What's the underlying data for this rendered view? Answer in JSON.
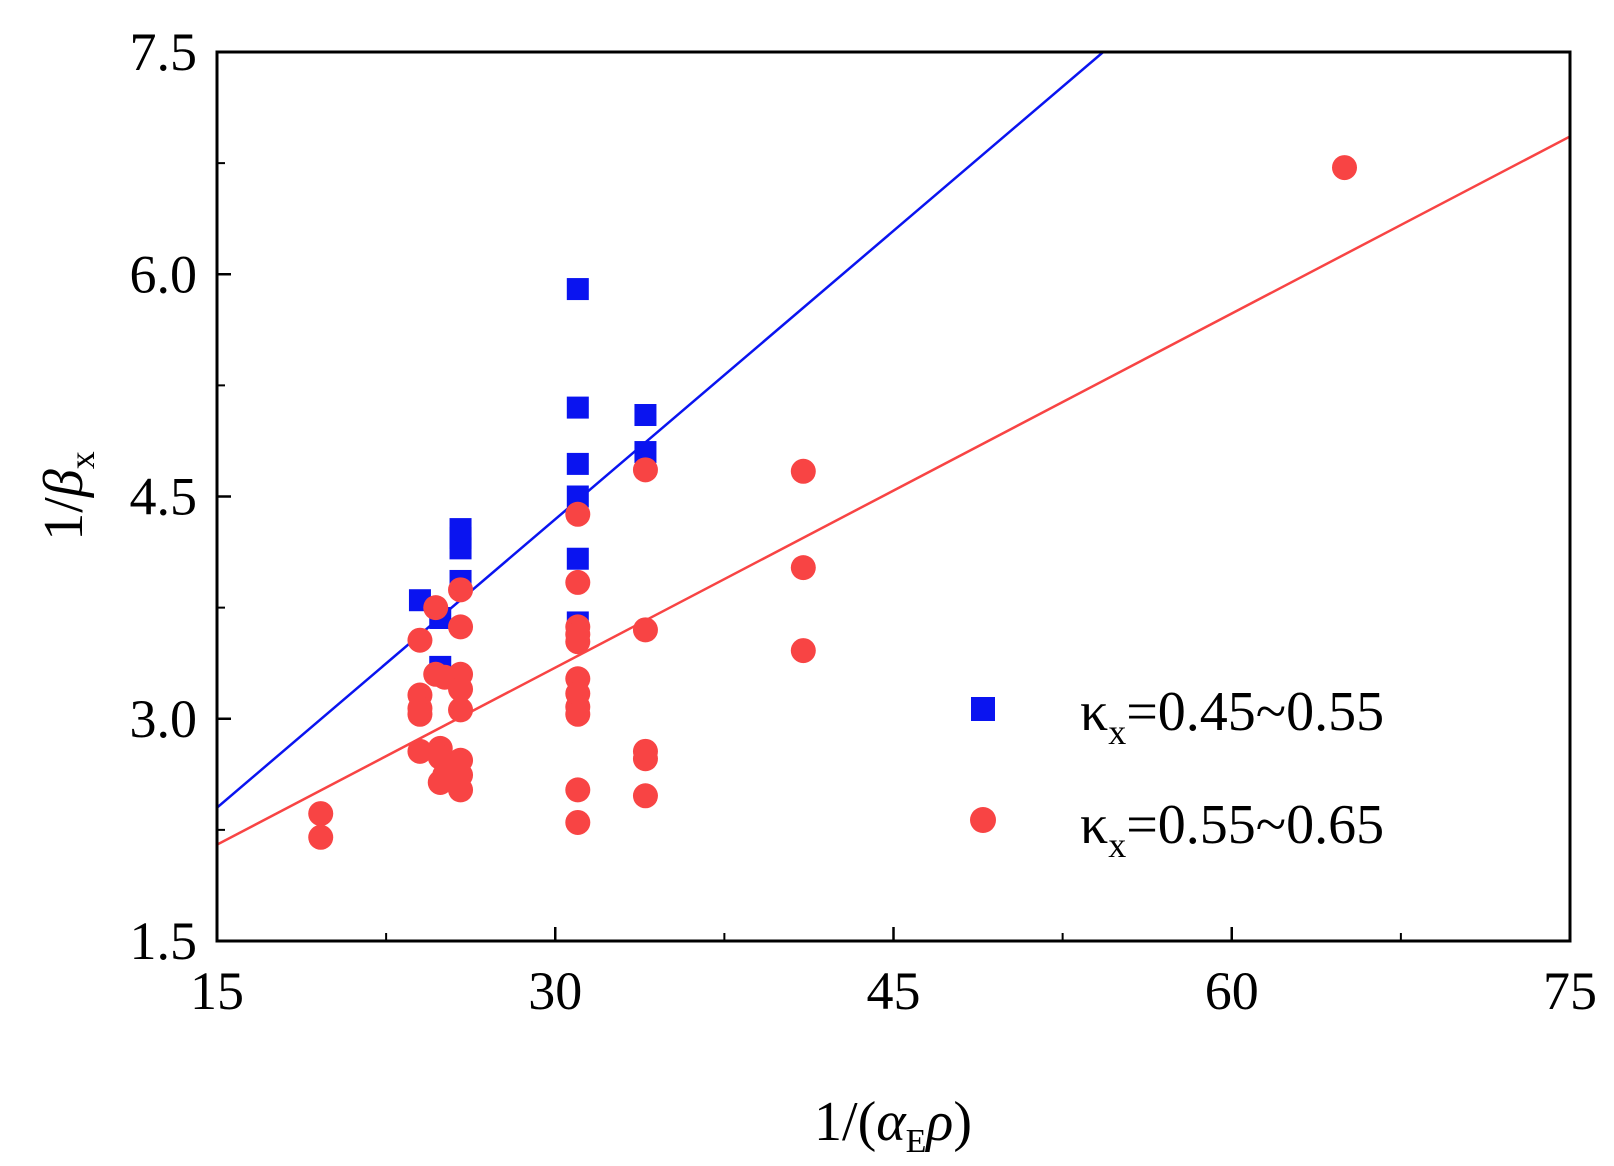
{
  "chart_data": {
    "type": "scatter",
    "title": "",
    "xlabel": {
      "prefix": "1/(",
      "symbol": "α",
      "subscript": "E",
      "symbol2": "ρ",
      "suffix": ")"
    },
    "ylabel": {
      "prefix": "1/",
      "symbol": "β",
      "subscript": "x"
    },
    "xlim": [
      15,
      75
    ],
    "ylim": [
      1.5,
      7.5
    ],
    "xticks": [
      15,
      30,
      45,
      60,
      75
    ],
    "xtick_labels": [
      "15",
      "30",
      "45",
      "60",
      "75"
    ],
    "yticks": [
      1.5,
      3.0,
      4.5,
      6.0,
      7.5
    ],
    "ytick_labels": [
      "1.5",
      "3.0",
      "4.5",
      "6.0",
      "7.5"
    ],
    "x_minor_ticks": [
      22.5,
      37.5,
      52.5,
      67.5
    ],
    "y_minor_ticks": [
      2.25,
      3.75,
      5.25,
      6.75
    ],
    "grid": false,
    "legend_position": "bottom-right",
    "series": [
      {
        "name": "κx=0.45~0.55",
        "label_main": "κ",
        "label_sub": "x",
        "label_rest": "=0.45~0.55",
        "marker": "square",
        "color": "#0a14f0",
        "points": [
          [
            24.0,
            3.8
          ],
          [
            24.9,
            3.68
          ],
          [
            24.9,
            3.35
          ],
          [
            25.8,
            4.28
          ],
          [
            25.8,
            4.22
          ],
          [
            25.8,
            4.15
          ],
          [
            25.8,
            3.93
          ],
          [
            31.0,
            5.9
          ],
          [
            31.0,
            5.1
          ],
          [
            31.0,
            4.72
          ],
          [
            31.0,
            4.5
          ],
          [
            31.0,
            4.08
          ],
          [
            31.0,
            3.65
          ],
          [
            34.0,
            5.05
          ],
          [
            34.0,
            4.8
          ]
        ],
        "fit_line": {
          "x": [
            15,
            54.3
          ],
          "y": [
            2.4,
            7.5
          ]
        }
      },
      {
        "name": "κx=0.55~0.65",
        "label_main": "κ",
        "label_sub": "x",
        "label_rest": "=0.55~0.65",
        "marker": "circle",
        "color": "#f84444",
        "points": [
          [
            19.6,
            2.36
          ],
          [
            19.6,
            2.2
          ],
          [
            24.0,
            3.53
          ],
          [
            24.0,
            3.16
          ],
          [
            24.0,
            3.07
          ],
          [
            24.0,
            3.03
          ],
          [
            24.0,
            2.78
          ],
          [
            24.7,
            3.75
          ],
          [
            24.7,
            3.3
          ],
          [
            24.9,
            2.8
          ],
          [
            24.9,
            2.74
          ],
          [
            24.9,
            2.57
          ],
          [
            25.1,
            3.28
          ],
          [
            25.1,
            2.62
          ],
          [
            25.8,
            3.87
          ],
          [
            25.8,
            3.62
          ],
          [
            25.8,
            3.3
          ],
          [
            25.8,
            3.2
          ],
          [
            25.8,
            3.06
          ],
          [
            25.8,
            2.72
          ],
          [
            25.8,
            2.62
          ],
          [
            25.8,
            2.52
          ],
          [
            31.0,
            4.38
          ],
          [
            31.0,
            3.92
          ],
          [
            31.0,
            3.62
          ],
          [
            31.0,
            3.57
          ],
          [
            31.0,
            3.52
          ],
          [
            31.0,
            3.27
          ],
          [
            31.0,
            3.17
          ],
          [
            31.0,
            3.08
          ],
          [
            31.0,
            3.03
          ],
          [
            31.0,
            2.52
          ],
          [
            31.0,
            2.3
          ],
          [
            34.0,
            4.68
          ],
          [
            34.0,
            3.6
          ],
          [
            34.0,
            2.78
          ],
          [
            34.0,
            2.73
          ],
          [
            34.0,
            2.48
          ],
          [
            41.0,
            4.67
          ],
          [
            41.0,
            4.02
          ],
          [
            41.0,
            3.46
          ],
          [
            65.0,
            6.72
          ]
        ],
        "fit_line": {
          "x": [
            15,
            75
          ],
          "y": [
            2.15,
            6.93
          ]
        }
      }
    ]
  }
}
